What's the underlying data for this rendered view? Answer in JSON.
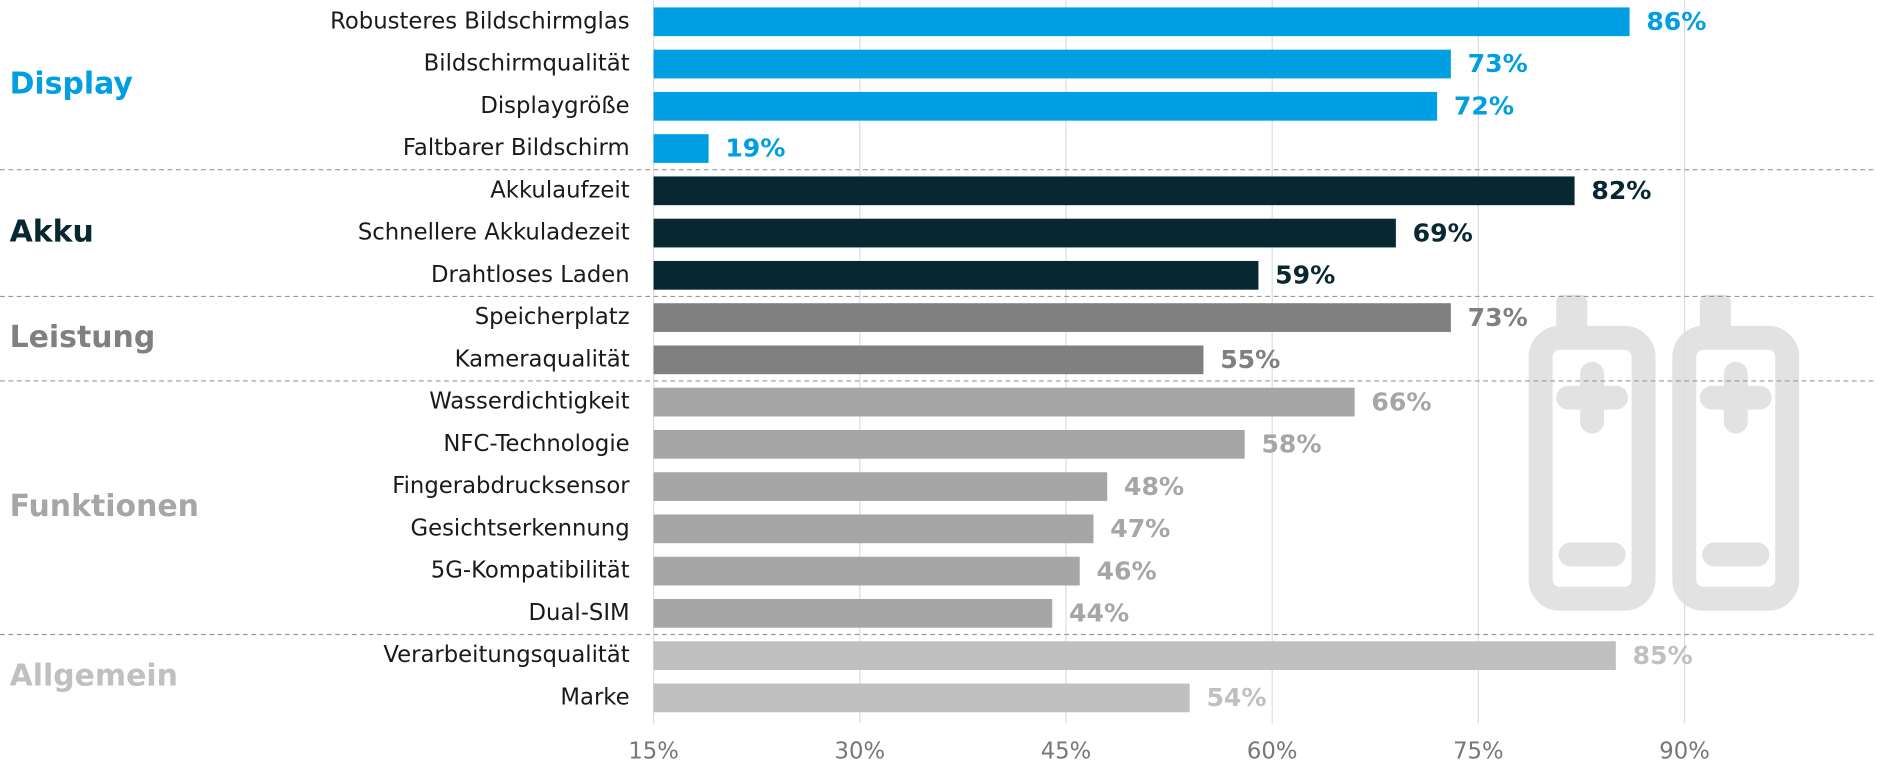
{
  "chart_data": {
    "type": "bar",
    "xlim": [
      15,
      104
    ],
    "xticks": [
      {
        "value": 15,
        "label": "15%"
      },
      {
        "value": 30,
        "label": "30%"
      },
      {
        "value": 45,
        "label": "45%"
      },
      {
        "value": 60,
        "label": "60%"
      },
      {
        "value": 75,
        "label": "75%"
      },
      {
        "value": 90,
        "label": "90%"
      }
    ],
    "grid": true,
    "groups": [
      {
        "name": "Display",
        "color": "#009fe3",
        "categories": [
          "Robusteres Bildschirmglas",
          "Bildschirmqualität",
          "Displaygröße",
          "Faltbarer Bildschirm"
        ],
        "values": [
          86,
          73,
          72,
          19
        ],
        "value_labels": [
          "86%",
          "73%",
          "72%",
          "19%"
        ]
      },
      {
        "name": "Akku",
        "color": "#082831",
        "categories": [
          "Akkulaufzeit",
          "Schnellere Akkuladezeit",
          "Drahtloses Laden"
        ],
        "values": [
          82,
          69,
          59
        ],
        "value_labels": [
          "82%",
          "69%",
          "59%"
        ]
      },
      {
        "name": "Leistung",
        "color": "#808080",
        "categories": [
          "Speicherplatz",
          "Kameraqualität"
        ],
        "values": [
          73,
          55
        ],
        "value_labels": [
          "73%",
          "55%"
        ]
      },
      {
        "name": "Funktionen",
        "color": "#a6a6a6",
        "categories": [
          "Wasserdichtigkeit",
          "NFC-Technologie",
          "Fingerabdrucksensor",
          "Gesichtserkennung",
          "5G-Kompatibilität",
          "Dual-SIM"
        ],
        "values": [
          66,
          58,
          48,
          47,
          46,
          44
        ],
        "value_labels": [
          "66%",
          "58%",
          "48%",
          "47%",
          "46%",
          "44%"
        ]
      },
      {
        "name": "Allgemein",
        "color": "#c0c0c0",
        "categories": [
          "Verarbeitungsqualität",
          "Marke"
        ],
        "values": [
          85,
          54
        ],
        "value_labels": [
          "85%",
          "54%"
        ]
      }
    ]
  }
}
